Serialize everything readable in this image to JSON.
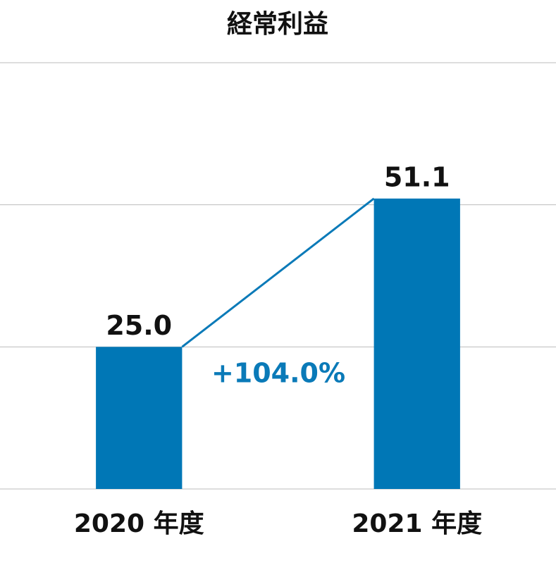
{
  "chart_data": {
    "type": "bar",
    "title": "経常利益",
    "categories": [
      "2020 年度",
      "2021 年度"
    ],
    "values": [
      25.0,
      51.1
    ],
    "value_labels": [
      "25.0",
      "51.1"
    ],
    "color": "#0077b6",
    "ylim": [
      0,
      75
    ],
    "yticks": [
      0,
      25,
      50,
      75
    ],
    "grid": true,
    "annotation": "+104.0%",
    "annotation_color": "#0a7ab8"
  }
}
